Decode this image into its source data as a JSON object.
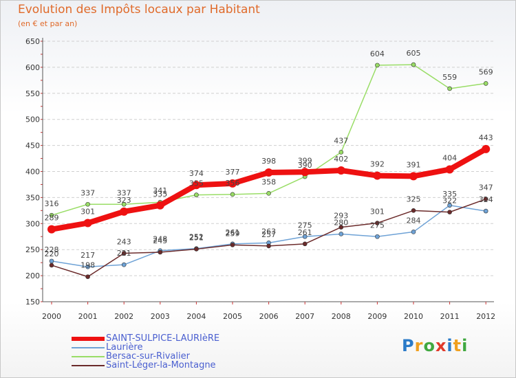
{
  "chart_data": {
    "type": "line",
    "title": "Evolution des Impôts locaux par Habitant",
    "subtitle": "(en € et par an)",
    "xlabel": "",
    "ylabel": "",
    "ylim": [
      150,
      650
    ],
    "y_ticks": [
      150,
      200,
      250,
      300,
      350,
      400,
      450,
      500,
      550,
      600,
      650
    ],
    "grid": "horizontal dashed",
    "categories": [
      "2000",
      "2001",
      "2002",
      "2003",
      "2004",
      "2005",
      "2006",
      "2007",
      "2008",
      "2009",
      "2010",
      "2011",
      "2012"
    ],
    "series": [
      {
        "name": "SAINT-SULPICE-LAURIèRE",
        "color": "#ee1111",
        "values": [
          289,
          301,
          323,
          335,
          374,
          377,
          398,
          399,
          402,
          392,
          391,
          404,
          443
        ]
      },
      {
        "name": "Laurière",
        "color": "#6ea2d6",
        "values": [
          228,
          217,
          221,
          248,
          252,
          261,
          263,
          275,
          280,
          275,
          284,
          335,
          324
        ]
      },
      {
        "name": "Bersac-sur-Rivalier",
        "color": "#99dd66",
        "values": [
          316,
          337,
          337,
          341,
          355,
          356,
          358,
          390,
          437,
          604,
          605,
          559,
          569
        ]
      },
      {
        "name": "Saint-Léger-la-Montagne",
        "color": "#6b2a2a",
        "values": [
          220,
          198,
          243,
          245,
          251,
          259,
          257,
          261,
          293,
          301,
          325,
          322,
          347
        ]
      }
    ],
    "legend_position": "bottom-left"
  },
  "logo": {
    "text": "Proxiti"
  }
}
